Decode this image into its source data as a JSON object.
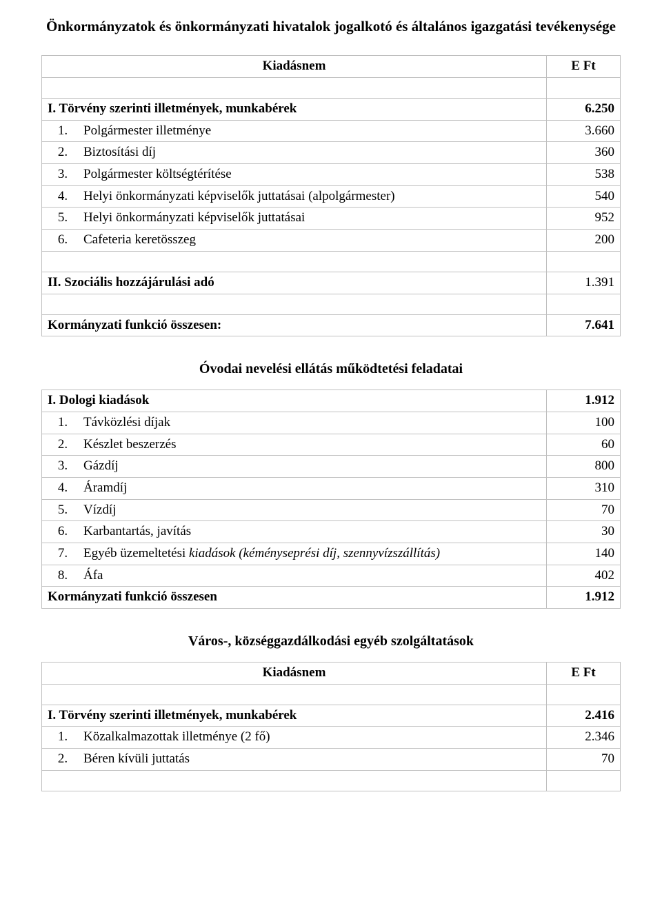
{
  "section1": {
    "title": "Önkormányzatok és önkormányzati hivatalok jogalkotó és általános igazgatási tevékenysége",
    "header": {
      "label": "Kiadásnem",
      "value": "E Ft"
    },
    "group1": {
      "label": "I. Törvény szerinti illetmények, munkabérek",
      "value": "6.250"
    },
    "rows1": [
      {
        "n": "1.",
        "label": "Polgármester illetménye",
        "value": "3.660"
      },
      {
        "n": "2.",
        "label": "Biztosítási díj",
        "value": "360"
      },
      {
        "n": "3.",
        "label": "Polgármester költségtérítése",
        "value": "538"
      },
      {
        "n": "4.",
        "label": "Helyi önkormányzati képviselők juttatásai (alpolgármester)",
        "value": "540"
      },
      {
        "n": "5.",
        "label": "Helyi önkormányzati képviselők juttatásai",
        "value": "952"
      },
      {
        "n": "6.",
        "label": "Cafeteria keretösszeg",
        "value": "200"
      }
    ],
    "group2": {
      "label": "II. Szociális hozzájárulási adó",
      "value": "1.391"
    },
    "total": {
      "label": "Kormányzati funkció összesen:",
      "value": "7.641"
    }
  },
  "section2": {
    "title": "Óvodai nevelési ellátás működtetési feladatai",
    "group1": {
      "label": "I. Dologi kiadások",
      "value": "1.912"
    },
    "rows1": [
      {
        "n": "1.",
        "label": "Távközlési díjak",
        "value": "100"
      },
      {
        "n": "2.",
        "label": "Készlet beszerzés",
        "value": "60"
      },
      {
        "n": "3.",
        "label": "Gázdíj",
        "value": "800"
      },
      {
        "n": "4.",
        "label": "Áramdíj",
        "value": "310"
      },
      {
        "n": "5.",
        "label": "Vízdíj",
        "value": "70"
      },
      {
        "n": "6.",
        "label": "Karbantartás, javítás",
        "value": "30"
      },
      {
        "n": "7.",
        "label_html": "Egyéb üzemeltetési <i>kiadások (kéményseprési díj, szennyvízszállítás)</i>",
        "value": "140"
      },
      {
        "n": "8.",
        "label": "Áfa",
        "value": "402"
      }
    ],
    "total": {
      "label": "Kormányzati funkció összesen",
      "value": "1.912"
    }
  },
  "section3": {
    "title": "Város-, községgazdálkodási egyéb szolgáltatások",
    "header": {
      "label": "Kiadásnem",
      "value": "E Ft"
    },
    "group1": {
      "label": "I. Törvény szerinti illetmények, munkabérek",
      "value": "2.416"
    },
    "rows1": [
      {
        "n": "1.",
        "label": "Közalkalmazottak illetménye (2 fő)",
        "value": "2.346"
      },
      {
        "n": "2.",
        "label": "Béren kívüli juttatás",
        "value": "70"
      }
    ]
  }
}
